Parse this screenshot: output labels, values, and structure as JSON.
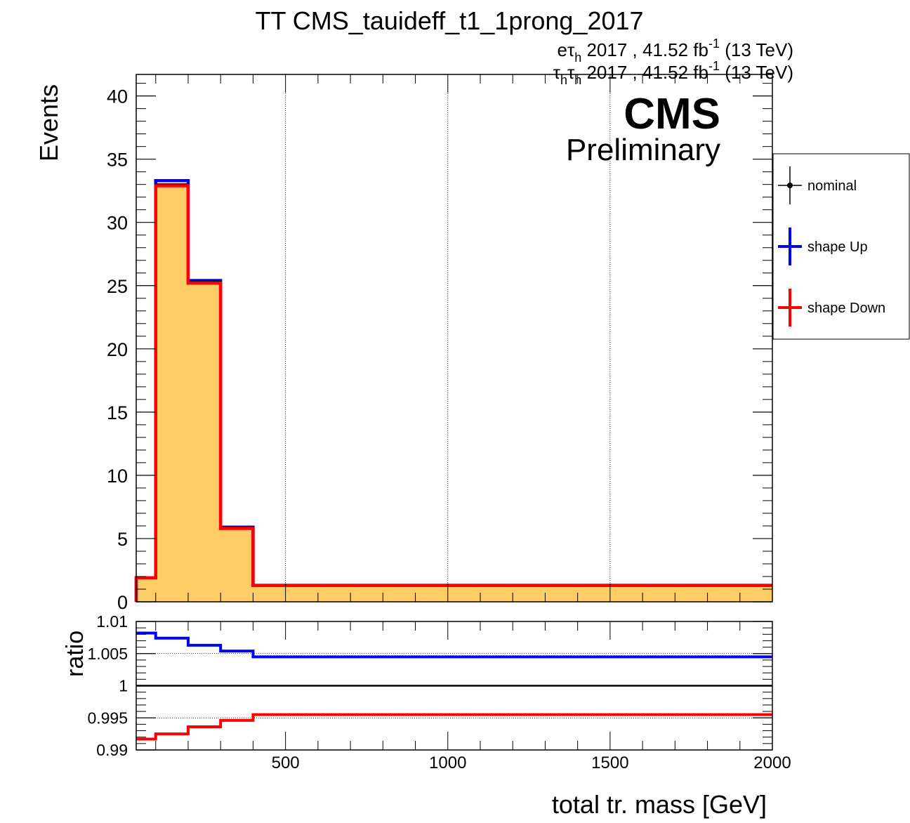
{
  "chart_data": [
    {
      "panel": "main",
      "type": "step-histogram",
      "title": "TT CMS_tauideff_t1_1prong_2017",
      "lumi_lines": [
        {
          "base": "eτ",
          "sub": "h",
          "rest": " 2017 , 41.52 fb",
          "sup": "-1",
          "tail": " (13 TeV)"
        },
        {
          "base": "τ",
          "sub": "h",
          "base2": "τ",
          "sub2": "h",
          "rest": " 2017 , 41.52 fb",
          "sup": "-1",
          "tail": " (13 TeV)"
        }
      ],
      "cms_label": "CMS",
      "cms_sublabel": "Preliminary",
      "xlabel": "total tr. mass [GeV]",
      "ylabel": "Events",
      "xlim": [
        40,
        2000
      ],
      "ylim": [
        0,
        41.7
      ],
      "yticks": [
        0,
        5,
        10,
        15,
        20,
        25,
        30,
        35,
        40
      ],
      "ytick_labels": [
        "0",
        "5",
        "10",
        "15",
        "20",
        "25",
        "30",
        "35",
        "40"
      ],
      "grid_x": [
        500,
        1000,
        1500
      ],
      "bin_edges": [
        40,
        100,
        200,
        300,
        400,
        2000
      ],
      "series": [
        {
          "name": "nominal",
          "color": "#000000",
          "values": [
            1.9,
            33.0,
            25.3,
            5.9,
            1.3
          ]
        },
        {
          "name": "shape Up",
          "color": "#0000ff",
          "values": [
            1.9,
            33.3,
            25.4,
            5.9,
            1.3
          ]
        },
        {
          "name": "shape Down",
          "color": "#ff0000",
          "values": [
            1.9,
            32.9,
            25.2,
            5.8,
            1.3
          ]
        }
      ],
      "fill_color": "#ffcc66",
      "legend": {
        "placement": "right",
        "entries": [
          {
            "label": "nominal",
            "color": "#000000",
            "marker": true
          },
          {
            "label": "shape Up",
            "color": "#0000ff",
            "marker": false
          },
          {
            "label": "shape Down",
            "color": "#ff0000",
            "marker": false
          }
        ]
      }
    },
    {
      "panel": "ratio",
      "type": "step-line",
      "ylabel": "ratio",
      "xlabel": "total tr. mass [GeV]",
      "xlim": [
        40,
        2000
      ],
      "ylim": [
        0.99,
        1.01
      ],
      "yticks": [
        0.99,
        0.995,
        1,
        1.005,
        1.01
      ],
      "ytick_labels": [
        "0.99",
        "0.995",
        "1",
        "1.005",
        "1.01"
      ],
      "xticks": [
        500,
        1000,
        1500,
        2000
      ],
      "xtick_labels": [
        "500",
        "1000",
        "1500",
        "2000"
      ],
      "bin_edges": [
        40,
        100,
        200,
        300,
        400,
        2000
      ],
      "series": [
        {
          "name": "shape Up",
          "color": "#0000ff",
          "values": [
            1.0082,
            1.0074,
            1.0063,
            1.0054,
            1.0045
          ]
        },
        {
          "name": "shape Down",
          "color": "#ff0000",
          "values": [
            0.9917,
            0.9925,
            0.9936,
            0.9946,
            0.9955
          ]
        }
      ],
      "reference_line": 1
    }
  ]
}
